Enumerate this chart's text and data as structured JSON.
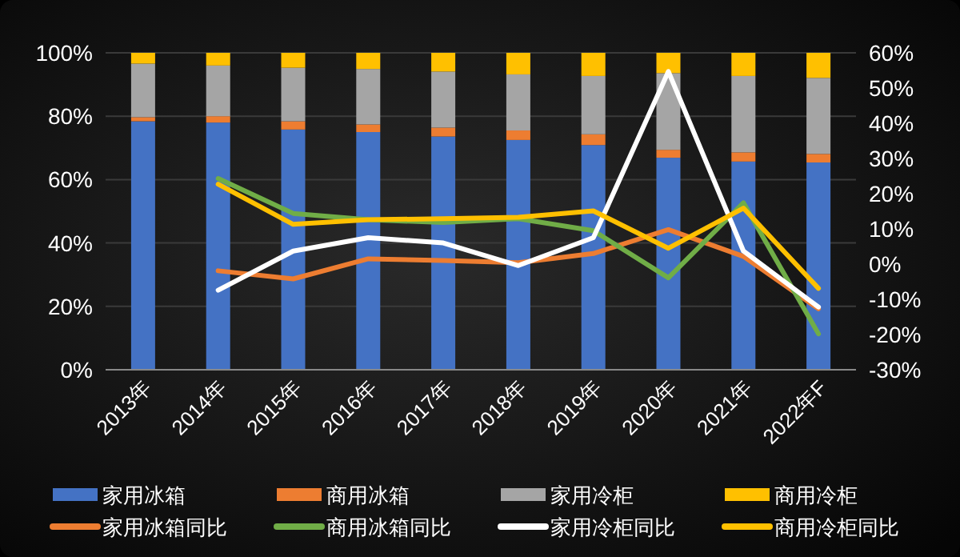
{
  "chart_data": {
    "type": "bar",
    "stacked": true,
    "categories": [
      "2013年",
      "2014年",
      "2015年",
      "2016年",
      "2017年",
      "2018年",
      "2019年",
      "2020年",
      "2021年",
      "2022年F"
    ],
    "series": [
      {
        "name": "家用冰箱",
        "color": "#4472c4",
        "values": [
          78.4,
          78,
          75.8,
          75,
          73.6,
          72.5,
          70.9,
          66.9,
          65.7,
          65.4
        ]
      },
      {
        "name": "商用冰箱",
        "color": "#ed7d31",
        "values": [
          1.3,
          2,
          2.6,
          2.4,
          2.8,
          3,
          3.4,
          2.5,
          2.9,
          2.7
        ]
      },
      {
        "name": "家用冷柜",
        "color": "#a5a5a5",
        "values": [
          16.9,
          16,
          16.9,
          17.5,
          17.7,
          17.7,
          18.4,
          24.2,
          24.1,
          24
        ]
      },
      {
        "name": "商用冷柜",
        "color": "#ffc000",
        "values": [
          3.4,
          4,
          4.7,
          5.1,
          5.9,
          6.8,
          7.3,
          6.4,
          7.3,
          7.9
        ]
      },
      {
        "name": "家用冰箱同比",
        "type": "line",
        "axis": "y2",
        "color": "#ed7d31",
        "values": [
          null,
          -1.9,
          -4.2,
          1.5,
          1.0,
          0.4,
          3.0,
          9.8,
          2.2,
          -12.7
        ]
      },
      {
        "name": "商用冰箱同比",
        "type": "line",
        "axis": "y2",
        "color": "#70ad47",
        "values": [
          null,
          24.3,
          14.4,
          12.6,
          11.8,
          12.9,
          9.5,
          -3.9,
          17.4,
          -19.8
        ]
      },
      {
        "name": "家用冷柜同比",
        "type": "line",
        "axis": "y2",
        "color": "#ffffff",
        "values": [
          null,
          -7.4,
          3.7,
          7.5,
          6,
          -0.4,
          7.5,
          54.7,
          3.7,
          -12.2
        ]
      },
      {
        "name": "商用冷柜同比",
        "type": "line",
        "axis": "y2",
        "color": "#ffc000",
        "values": [
          null,
          22.7,
          11.3,
          12.6,
          12.9,
          13.3,
          15.1,
          4.5,
          15.9,
          -6.9
        ]
      }
    ],
    "ylim": [
      0,
      100
    ],
    "yticks": [
      {
        "value": 0,
        "label": "0%"
      },
      {
        "value": 20,
        "label": "20%"
      },
      {
        "value": 40,
        "label": "40%"
      },
      {
        "value": 60,
        "label": "60%"
      },
      {
        "value": 80,
        "label": "80%"
      },
      {
        "value": 100,
        "label": "100%"
      }
    ],
    "y2lim": [
      -30,
      60
    ],
    "y2ticks": [
      {
        "value": -30,
        "label": "-30%"
      },
      {
        "value": -20,
        "label": "-20%"
      },
      {
        "value": -10,
        "label": "-10%"
      },
      {
        "value": 0,
        "label": "0%"
      },
      {
        "value": 10,
        "label": "10%"
      },
      {
        "value": 20,
        "label": "20%"
      },
      {
        "value": 30,
        "label": "30%"
      },
      {
        "value": 40,
        "label": "40%"
      },
      {
        "value": 50,
        "label": "50%"
      },
      {
        "value": 60,
        "label": "60%"
      }
    ],
    "grid": "y",
    "legend": "bottom"
  }
}
